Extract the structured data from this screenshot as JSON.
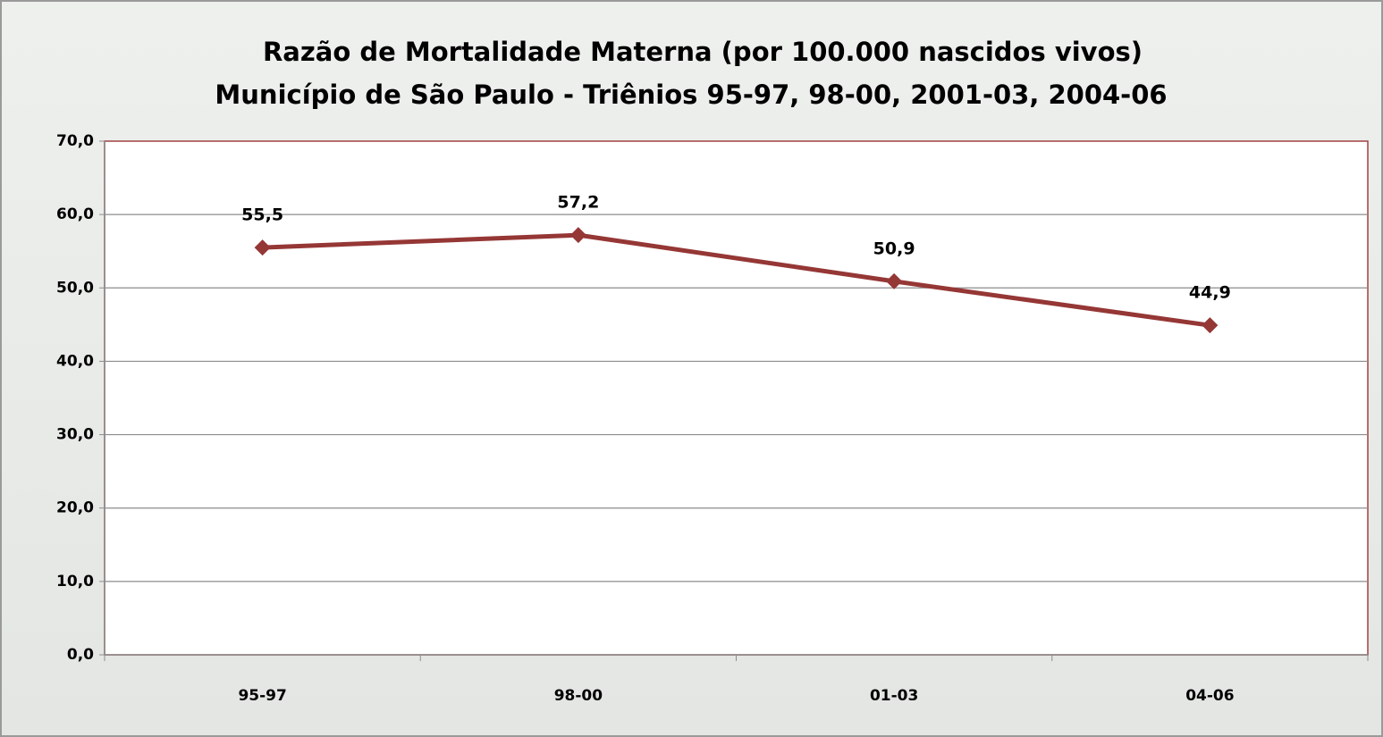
{
  "chart_data": {
    "type": "line",
    "title": "Razão de Mortalidade Materna (por 100.000 nascidos vivos)",
    "subtitle": "Município de São Paulo - Triênios 95-97, 98-00, 2001-03, 2004-06",
    "categories": [
      "95-97",
      "98-00",
      "01-03",
      "04-06"
    ],
    "series": [
      {
        "name": "Razão de Mortalidade Materna",
        "color": "#953735",
        "values": [
          55.5,
          57.2,
          50.9,
          44.9
        ],
        "value_labels": [
          "55,5",
          "57,2",
          "50,9",
          "44,9"
        ]
      }
    ],
    "ylim": [
      0,
      70
    ],
    "yticks": [
      {
        "value": 0,
        "label": "0,0"
      },
      {
        "value": 10,
        "label": "10,0"
      },
      {
        "value": 20,
        "label": "20,0"
      },
      {
        "value": 30,
        "label": "30,0"
      },
      {
        "value": 40,
        "label": "40,0"
      },
      {
        "value": 50,
        "label": "50,0"
      },
      {
        "value": 60,
        "label": "60,0"
      },
      {
        "value": 70,
        "label": "70,0"
      }
    ],
    "grid": true,
    "legend": false
  }
}
